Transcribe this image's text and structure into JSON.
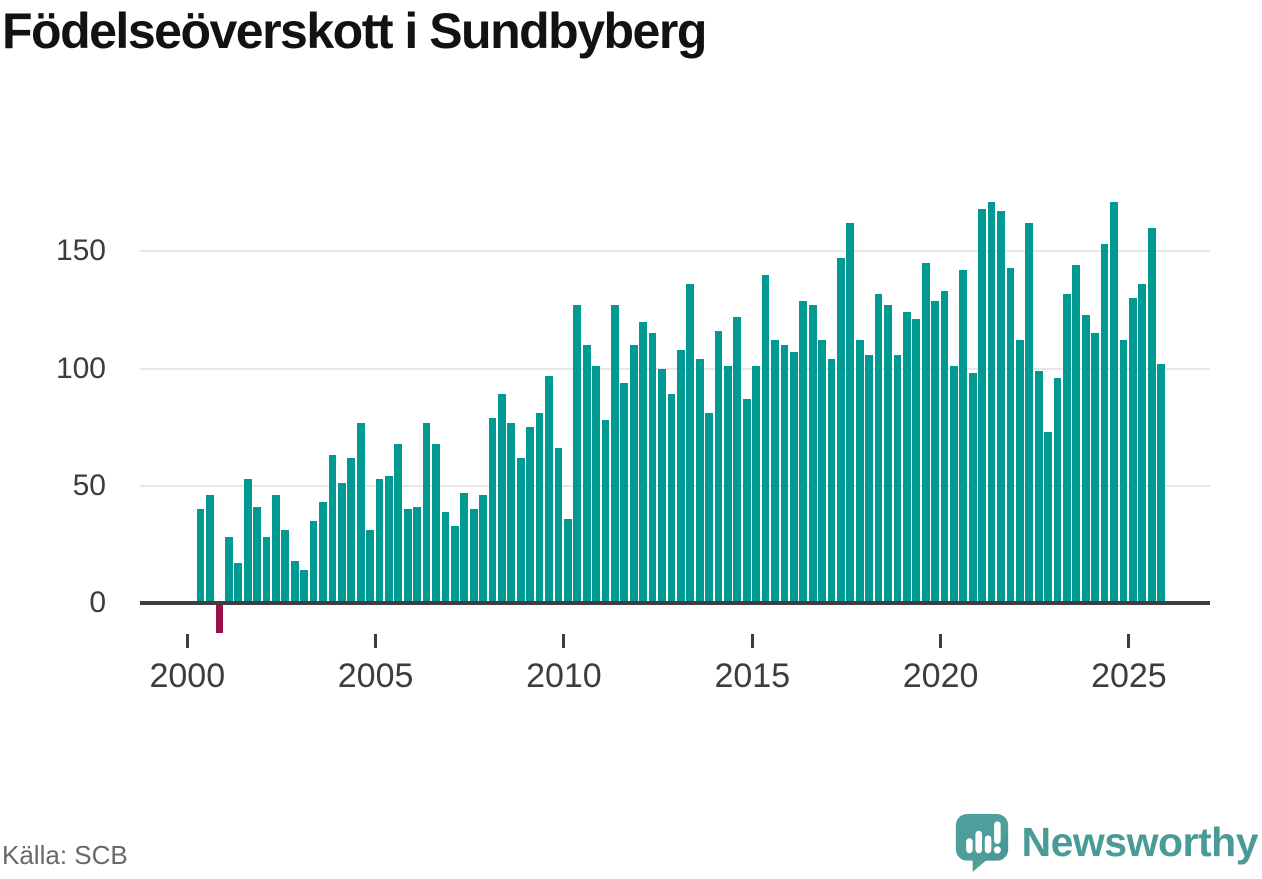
{
  "header": {
    "title": "Födelseöverskott i Sundbyberg"
  },
  "footer": {
    "source": "Källa: SCB",
    "brand": "Newsworthy",
    "brand_icon": "newsworthy-speech-bubble-barchart-icon"
  },
  "colors": {
    "bar": "#009A93",
    "negative_bar": "#9E1049",
    "axis": "#3C3C42",
    "gridline": "#E7E7E7",
    "tick_label": "#3C3C42",
    "title_text": "#121212",
    "source_text": "#68686D",
    "brand_teal": "#4A9B98"
  },
  "chart_data": {
    "type": "bar",
    "title": "Födelseöverskott i Sundbyberg",
    "frequency": "quarterly",
    "start_quarter": "2000-Q2",
    "end_quarter": "2025-Q4",
    "values": [
      40,
      46,
      -12,
      28,
      17,
      53,
      41,
      28,
      46,
      31,
      18,
      14,
      35,
      43,
      63,
      51,
      62,
      77,
      31,
      53,
      54,
      68,
      40,
      41,
      77,
      68,
      39,
      33,
      47,
      40,
      46,
      79,
      89,
      77,
      62,
      75,
      81,
      97,
      66,
      36,
      127,
      110,
      101,
      78,
      127,
      94,
      110,
      120,
      115,
      100,
      89,
      108,
      136,
      104,
      81,
      116,
      101,
      122,
      87,
      101,
      140,
      112,
      110,
      107,
      129,
      127,
      112,
      104,
      147,
      162,
      112,
      106,
      132,
      127,
      106,
      124,
      121,
      145,
      129,
      133,
      101,
      142,
      98,
      168,
      171,
      167,
      143,
      112,
      162,
      99,
      73,
      96,
      132,
      144,
      123,
      115,
      153,
      171,
      112,
      130,
      136,
      160,
      102
    ],
    "negative_quarter": "2000-Q4",
    "x_ticks": [
      2000,
      2005,
      2010,
      2015,
      2020,
      2025
    ],
    "x_tick_labels": [
      "2000",
      "2005",
      "2010",
      "2015",
      "2020",
      "2025"
    ],
    "y_ticks": [
      0,
      50,
      100,
      150
    ],
    "y_tick_labels": [
      "0",
      "50",
      "100",
      "150"
    ],
    "ylim": [
      -12,
      172
    ],
    "grid": "horizontal",
    "legend": "none",
    "xlabel": "",
    "ylabel": ""
  }
}
